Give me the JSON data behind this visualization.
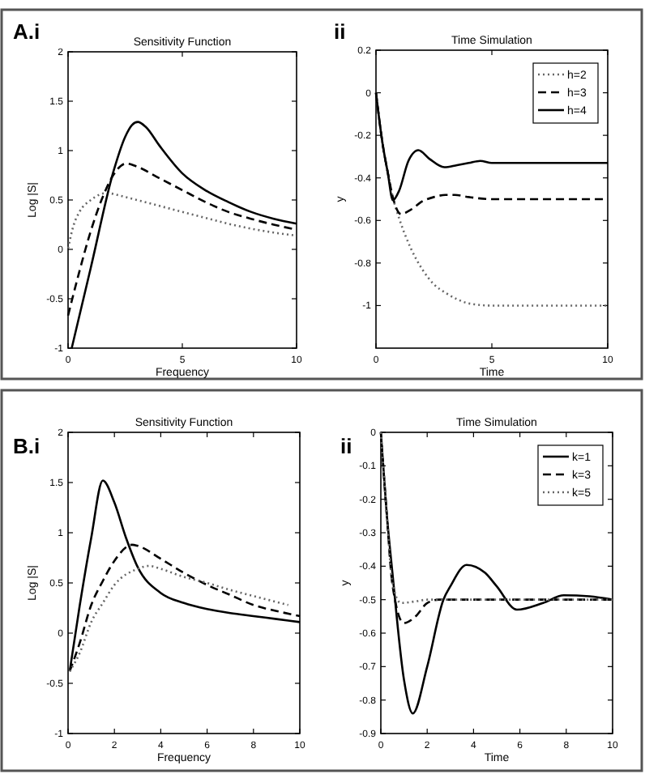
{
  "chart_data": [
    {
      "type": "line",
      "title": "Sensitivity Function",
      "xlabel": "Frequency",
      "ylabel": "Log |S|",
      "annotations": [
        "A.i"
      ],
      "xlim": [
        0,
        10
      ],
      "ylim": [
        -1,
        2
      ],
      "xticks": [
        0,
        5,
        10
      ],
      "yticks": [
        -1,
        -0.5,
        0,
        0.5,
        1,
        1.5,
        2
      ],
      "legend": false,
      "series": [
        {
          "color": "#666666",
          "line_style": "dotted",
          "x": [
            0,
            0.25,
            0.5,
            1,
            1.67,
            2.5,
            3,
            4,
            5,
            6,
            7,
            8,
            9,
            10
          ],
          "values": [
            0.01,
            0.25,
            0.38,
            0.5,
            0.57,
            0.53,
            0.5,
            0.44,
            0.38,
            0.32,
            0.26,
            0.21,
            0.17,
            0.14
          ]
        },
        {
          "color": "#000000",
          "line_style": "dashed",
          "x": [
            0,
            0.5,
            1,
            1.5,
            2,
            2.55,
            3,
            4,
            5,
            6,
            7,
            8,
            9,
            10
          ],
          "values": [
            -0.67,
            -0.22,
            0.19,
            0.52,
            0.76,
            0.87,
            0.84,
            0.72,
            0.6,
            0.48,
            0.38,
            0.31,
            0.25,
            0.2
          ]
        },
        {
          "color": "#000000",
          "line_style": "solid",
          "x": [
            0.16,
            1,
            2,
            2.5,
            2.8,
            3.05,
            3.4,
            4,
            5,
            6,
            7,
            8,
            9,
            10
          ],
          "values": [
            -1,
            -0.18,
            0.8,
            1.14,
            1.26,
            1.29,
            1.24,
            1.05,
            0.77,
            0.6,
            0.48,
            0.38,
            0.31,
            0.26
          ]
        }
      ]
    },
    {
      "type": "line",
      "title": "Time Simulation",
      "xlabel": "Time",
      "ylabel": "y",
      "annotations": [
        "ii"
      ],
      "xlim": [
        0,
        10
      ],
      "ylim": [
        -1.2,
        0.2
      ],
      "xticks": [
        0,
        5,
        10
      ],
      "yticks": [
        0.2,
        0,
        -0.2,
        -0.4,
        -0.6,
        -0.8,
        -1
      ],
      "legend": "top right",
      "series": [
        {
          "name": "h=2",
          "color": "#666666",
          "line_style": "dotted",
          "x": [
            0,
            0.3,
            0.5,
            0.75,
            1,
            1.5,
            2,
            2.5,
            3,
            3.5,
            4,
            5,
            6,
            7,
            8,
            9,
            10
          ],
          "values": [
            0,
            -0.25,
            -0.37,
            -0.5,
            -0.59,
            -0.73,
            -0.83,
            -0.9,
            -0.94,
            -0.97,
            -0.99,
            -1,
            -1,
            -1,
            -1,
            -1,
            -1
          ]
        },
        {
          "name": "h=3",
          "color": "#000000",
          "line_style": "dashed",
          "x": [
            0,
            0.3,
            0.5,
            0.75,
            1.08,
            1.5,
            2,
            2.5,
            3,
            3.4,
            4,
            5,
            6,
            7,
            8,
            9,
            10
          ],
          "values": [
            0,
            -0.25,
            -0.37,
            -0.5,
            -0.57,
            -0.55,
            -0.51,
            -0.49,
            -0.48,
            -0.48,
            -0.49,
            -0.5,
            -0.5,
            -0.5,
            -0.5,
            -0.5,
            -0.5
          ]
        },
        {
          "name": "h=4",
          "color": "#000000",
          "line_style": "solid",
          "x": [
            0,
            0.3,
            0.5,
            0.73,
            1,
            1.4,
            1.83,
            2.3,
            2.95,
            3.5,
            4,
            4.5,
            5,
            6,
            7,
            8,
            9,
            10
          ],
          "values": [
            0,
            -0.25,
            -0.37,
            -0.505,
            -0.46,
            -0.32,
            -0.27,
            -0.31,
            -0.35,
            -0.34,
            -0.33,
            -0.32,
            -0.33,
            -0.33,
            -0.33,
            -0.33,
            -0.33,
            -0.33
          ]
        }
      ]
    },
    {
      "type": "line",
      "title": "Sensitivity Function",
      "xlabel": "Frequency",
      "ylabel": "Log |S|",
      "annotations": [
        "B.i"
      ],
      "xlim": [
        0,
        10
      ],
      "ylim": [
        -1,
        2
      ],
      "xticks": [
        0,
        2,
        4,
        6,
        8,
        10
      ],
      "yticks": [
        -1,
        -0.5,
        0,
        0.5,
        1,
        1.5,
        2
      ],
      "legend": false,
      "series": [
        {
          "color": "#000000",
          "line_style": "solid",
          "x": [
            0.07,
            0.5,
            1,
            1.5,
            2,
            2.5,
            3,
            4,
            5,
            6,
            7,
            8,
            9,
            10
          ],
          "values": [
            -0.38,
            0.27,
            0.95,
            1.52,
            1.3,
            0.95,
            0.66,
            0.4,
            0.3,
            0.24,
            0.2,
            0.17,
            0.14,
            0.11
          ]
        },
        {
          "color": "#000000",
          "line_style": "dashed",
          "x": [
            0.07,
            0.5,
            1,
            1.5,
            2,
            2.76,
            3,
            4,
            5,
            6,
            7,
            8,
            9,
            10
          ],
          "values": [
            -0.38,
            -0.1,
            0.28,
            0.52,
            0.72,
            0.88,
            0.87,
            0.74,
            0.6,
            0.48,
            0.38,
            0.28,
            0.22,
            0.17
          ]
        },
        {
          "color": "#666666",
          "line_style": "dotted",
          "x": [
            0.07,
            0.5,
            1,
            1.5,
            2,
            3,
            3.5,
            4,
            5,
            6,
            7,
            8,
            9,
            9.5
          ],
          "values": [
            -0.38,
            -0.2,
            0.11,
            0.3,
            0.48,
            0.64,
            0.67,
            0.64,
            0.56,
            0.5,
            0.43,
            0.37,
            0.31,
            0.28
          ]
        }
      ]
    },
    {
      "type": "line",
      "title": "Time Simulation",
      "xlabel": "Time",
      "ylabel": "y",
      "annotations": [
        "ii"
      ],
      "xlim": [
        0,
        10
      ],
      "ylim": [
        -0.9,
        0
      ],
      "xticks": [
        0,
        2,
        4,
        6,
        8,
        10
      ],
      "yticks": [
        0,
        -0.1,
        -0.2,
        -0.3,
        -0.4,
        -0.5,
        -0.6,
        -0.7,
        -0.8,
        -0.9
      ],
      "legend": "top right",
      "series": [
        {
          "name": "k=1",
          "color": "#000000",
          "line_style": "solid",
          "x": [
            0,
            0.25,
            0.5,
            1,
            1.38,
            2,
            2.7,
            3,
            3.7,
            4.5,
            5,
            5.87,
            7,
            7.9,
            9,
            10
          ],
          "values": [
            0,
            -0.24,
            -0.42,
            -0.74,
            -0.84,
            -0.7,
            -0.5,
            -0.46,
            -0.396,
            -0.42,
            -0.46,
            -0.53,
            -0.51,
            -0.487,
            -0.49,
            -0.5
          ]
        },
        {
          "name": "k=3",
          "color": "#000000",
          "line_style": "dashed",
          "x": [
            0,
            0.25,
            0.5,
            0.99,
            1.5,
            2,
            2.5,
            3,
            4,
            5,
            6,
            7,
            8,
            9,
            10
          ],
          "values": [
            0,
            -0.24,
            -0.455,
            -0.57,
            -0.55,
            -0.51,
            -0.5,
            -0.5,
            -0.5,
            -0.5,
            -0.5,
            -0.5,
            -0.5,
            -0.5,
            -0.5
          ]
        },
        {
          "name": "k=5",
          "color": "#666666",
          "line_style": "dotted",
          "x": [
            0,
            0.25,
            0.5,
            0.87,
            1.5,
            2,
            3,
            4,
            5,
            6,
            7,
            8,
            9,
            10
          ],
          "values": [
            0,
            -0.24,
            -0.45,
            -0.51,
            -0.505,
            -0.5,
            -0.5,
            -0.5,
            -0.5,
            -0.5,
            -0.5,
            -0.5,
            -0.5,
            -0.5
          ]
        }
      ]
    }
  ]
}
